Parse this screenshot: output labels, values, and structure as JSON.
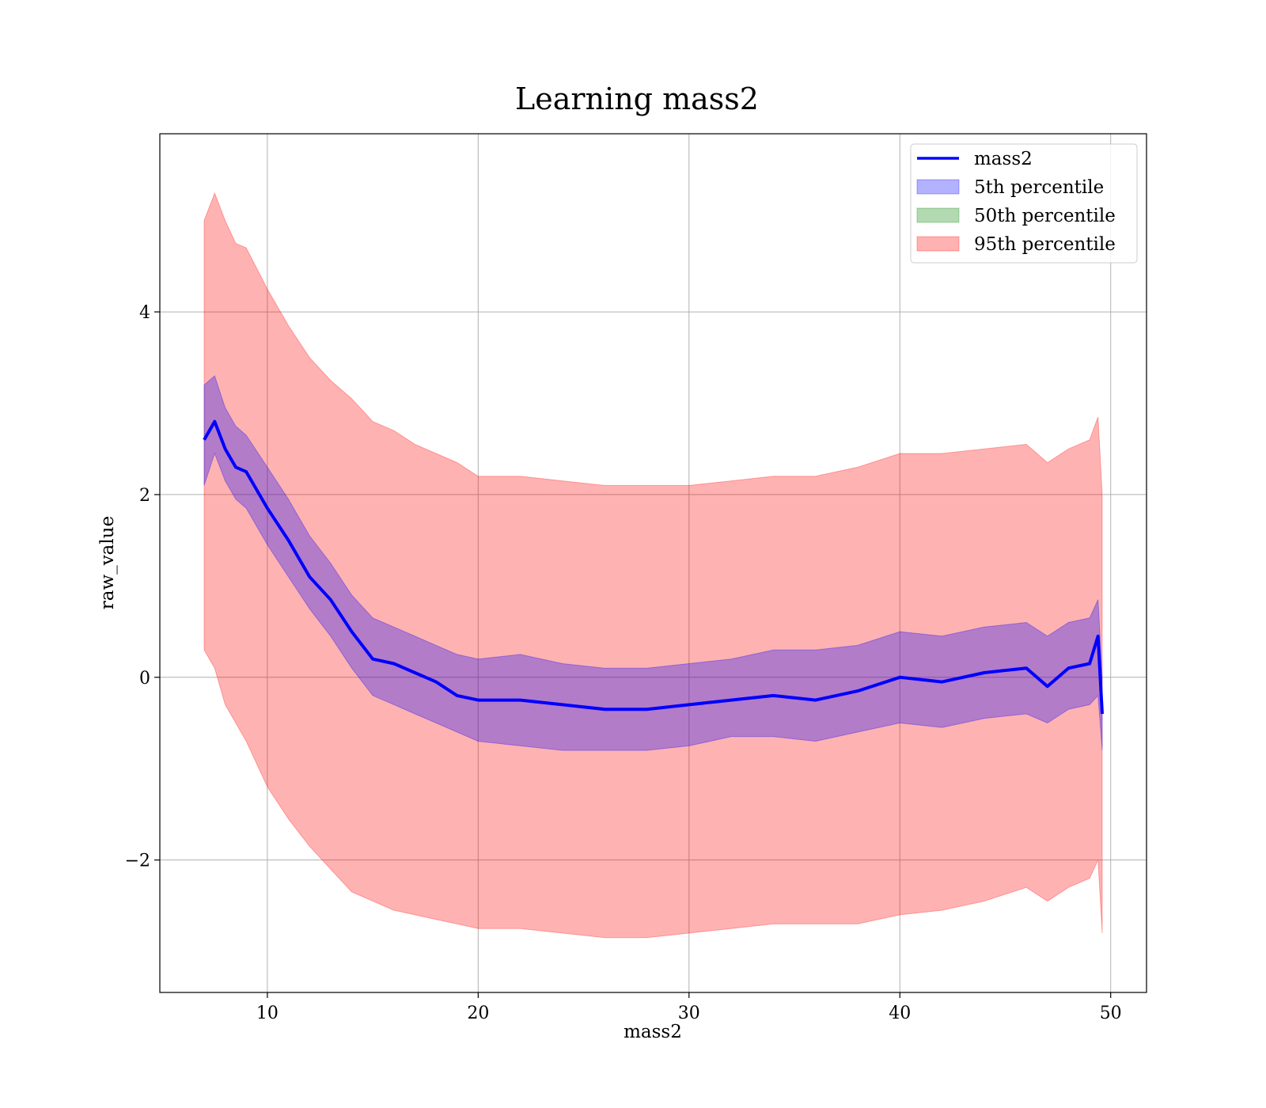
{
  "chart_data": {
    "type": "line",
    "title": "Learning mass2",
    "xlabel": "mass2",
    "ylabel": "raw_value",
    "xlim": [
      4.9,
      51.7
    ],
    "ylim": [
      -3.45,
      5.95
    ],
    "xticks": [
      10,
      20,
      30,
      40,
      50
    ],
    "xtick_labels": [
      "10",
      "20",
      "30",
      "40",
      "50"
    ],
    "yticks": [
      -2,
      0,
      2,
      4
    ],
    "ytick_labels": [
      "−2",
      "0",
      "2",
      "4"
    ],
    "grid": true,
    "legend_position": "top-right",
    "series": [
      {
        "name": "mass2",
        "kind": "line",
        "color": "#0000ff",
        "x": [
          7.0,
          7.5,
          8.0,
          8.5,
          9.0,
          10.0,
          11.0,
          12.0,
          13.0,
          14.0,
          15.0,
          16.0,
          17.0,
          18.0,
          19.0,
          20.0,
          22.0,
          24.0,
          26.0,
          28.0,
          30.0,
          32.0,
          34.0,
          36.0,
          38.0,
          40.0,
          42.0,
          44.0,
          46.0,
          47.0,
          48.0,
          49.0,
          49.4,
          49.6
        ],
        "values": [
          2.6,
          2.8,
          2.5,
          2.3,
          2.25,
          1.85,
          1.5,
          1.1,
          0.85,
          0.5,
          0.2,
          0.15,
          0.05,
          -0.05,
          -0.2,
          -0.25,
          -0.25,
          -0.3,
          -0.35,
          -0.35,
          -0.3,
          -0.25,
          -0.2,
          -0.25,
          -0.15,
          0.0,
          -0.05,
          0.05,
          0.1,
          -0.1,
          0.1,
          0.15,
          0.45,
          -0.4
        ]
      },
      {
        "name": "5th percentile",
        "kind": "band",
        "color": "#0000ff",
        "x": [
          7.0,
          7.5,
          8.0,
          8.5,
          9.0,
          10.0,
          11.0,
          12.0,
          13.0,
          14.0,
          15.0,
          16.0,
          17.0,
          18.0,
          19.0,
          20.0,
          22.0,
          24.0,
          26.0,
          28.0,
          30.0,
          32.0,
          34.0,
          36.0,
          38.0,
          40.0,
          42.0,
          44.0,
          46.0,
          47.0,
          48.0,
          49.0,
          49.4,
          49.6
        ],
        "lower": [
          2.1,
          2.45,
          2.15,
          1.95,
          1.85,
          1.45,
          1.1,
          0.75,
          0.45,
          0.1,
          -0.2,
          -0.3,
          -0.4,
          -0.5,
          -0.6,
          -0.7,
          -0.75,
          -0.8,
          -0.8,
          -0.8,
          -0.75,
          -0.65,
          -0.65,
          -0.7,
          -0.6,
          -0.5,
          -0.55,
          -0.45,
          -0.4,
          -0.5,
          -0.35,
          -0.3,
          -0.2,
          -0.8
        ],
        "upper": [
          3.2,
          3.3,
          2.95,
          2.75,
          2.65,
          2.3,
          1.95,
          1.55,
          1.25,
          0.9,
          0.65,
          0.55,
          0.45,
          0.35,
          0.25,
          0.2,
          0.25,
          0.15,
          0.1,
          0.1,
          0.15,
          0.2,
          0.3,
          0.3,
          0.35,
          0.5,
          0.45,
          0.55,
          0.6,
          0.45,
          0.6,
          0.65,
          0.85,
          0.0
        ]
      },
      {
        "name": "50th percentile",
        "kind": "band",
        "color": "#008000",
        "x": [],
        "lower": [],
        "upper": []
      },
      {
        "name": "95th percentile",
        "kind": "band",
        "color": "#ff0000",
        "x": [
          7.0,
          7.5,
          8.0,
          8.5,
          9.0,
          10.0,
          11.0,
          12.0,
          13.0,
          14.0,
          15.0,
          16.0,
          17.0,
          18.0,
          19.0,
          20.0,
          22.0,
          24.0,
          26.0,
          28.0,
          30.0,
          32.0,
          34.0,
          36.0,
          38.0,
          40.0,
          42.0,
          44.0,
          46.0,
          47.0,
          48.0,
          49.0,
          49.4,
          49.6
        ],
        "lower": [
          0.3,
          0.1,
          -0.3,
          -0.5,
          -0.7,
          -1.2,
          -1.55,
          -1.85,
          -2.1,
          -2.35,
          -2.45,
          -2.55,
          -2.6,
          -2.65,
          -2.7,
          -2.75,
          -2.75,
          -2.8,
          -2.85,
          -2.85,
          -2.8,
          -2.75,
          -2.7,
          -2.7,
          -2.7,
          -2.6,
          -2.55,
          -2.45,
          -2.3,
          -2.45,
          -2.3,
          -2.2,
          -2.0,
          -2.8
        ],
        "upper": [
          5.0,
          5.3,
          5.0,
          4.75,
          4.7,
          4.25,
          3.85,
          3.5,
          3.25,
          3.05,
          2.8,
          2.7,
          2.55,
          2.45,
          2.35,
          2.2,
          2.2,
          2.15,
          2.1,
          2.1,
          2.1,
          2.15,
          2.2,
          2.2,
          2.3,
          2.45,
          2.45,
          2.5,
          2.55,
          2.35,
          2.5,
          2.6,
          2.85,
          2.0
        ]
      }
    ]
  }
}
